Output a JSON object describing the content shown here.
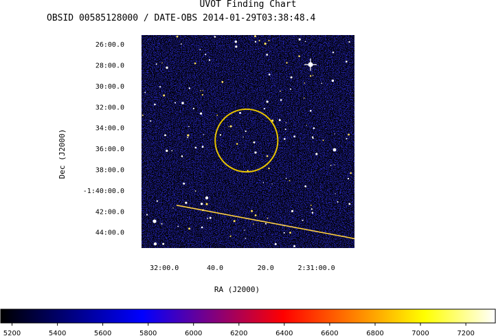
{
  "header": {
    "title": "UVOT Finding Chart",
    "subtitle": "OBSID 00585128000 / DATE-OBS 2014-01-29T03:38:48.4"
  },
  "chart_data": {
    "type": "heatmap",
    "title": "UVOT Finding Chart",
    "subtitle": "OBSID 00585128000 / DATE-OBS 2014-01-29T03:38:48.4",
    "xlabel": "RA (J2000)",
    "ylabel": "Dec (J2000)",
    "x_tick_labels": [
      "32:00.0",
      "40.0",
      "20.0",
      "2:31:00.0"
    ],
    "y_tick_labels": [
      "26:00.0",
      "28:00.0",
      "30:00.0",
      "32:00.0",
      "34:00.0",
      "36:00.0",
      "38:00.0",
      "-1:40:00.0",
      "42:00.0",
      "44:00.0"
    ],
    "ra_ticks_sec": [
      32,
      31.6667,
      31.3333,
      31
    ],
    "dec_ticks_min": [
      26,
      28,
      30,
      32,
      34,
      36,
      38,
      40,
      42,
      44
    ],
    "ra_range_min": [
      32.15,
      30.75
    ],
    "dec_range_min": [
      25.1,
      45.5
    ],
    "target_circle": {
      "ra_min": 31.46,
      "dec_min": 35.2,
      "radius_min": 3.0,
      "color": "#e8c400"
    },
    "streak": {
      "from": {
        "ra_min": 31.92,
        "dec_min": 41.4
      },
      "to": {
        "ra_min": 30.75,
        "dec_min": 44.6
      }
    },
    "colorbar": {
      "min": 5150,
      "max": 7330,
      "ticks": [
        5200,
        5400,
        5600,
        5800,
        6000,
        6200,
        6400,
        6600,
        6800,
        7000,
        7200
      ],
      "colormap": [
        "#000000",
        "#000080",
        "#0000ff",
        "#800080",
        "#ff0000",
        "#ff8000",
        "#ffff00",
        "#ffffff"
      ]
    },
    "noise_colors": [
      "#1a1aa0",
      "#2222c8",
      "#7a1a8c",
      "#b0123a",
      "#e01818"
    ],
    "grid": false
  }
}
